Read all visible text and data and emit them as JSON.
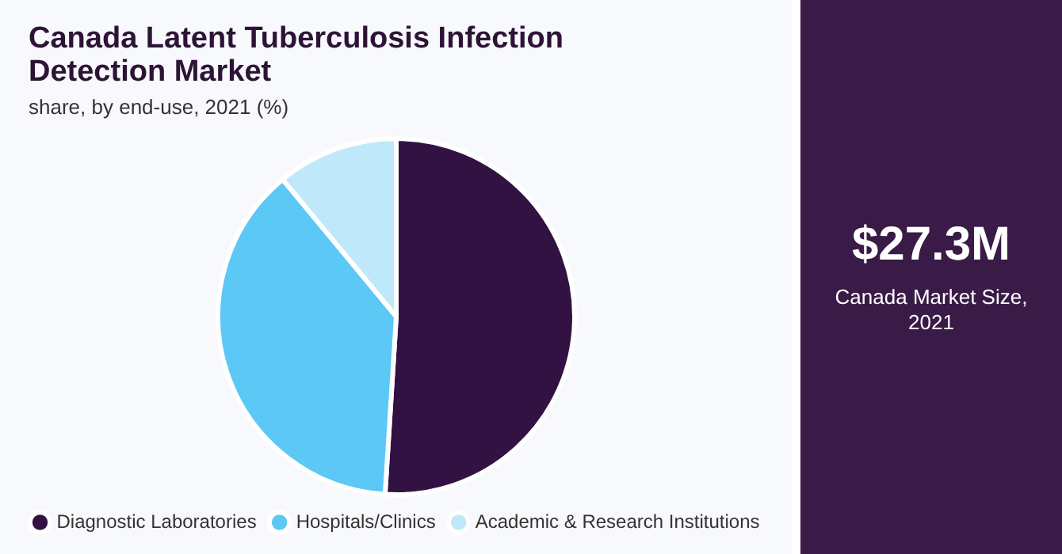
{
  "chart_data": {
    "type": "pie",
    "title": "Canada Latent Tuberculosis Infection Detection Market",
    "subtitle": "share, by end-use, 2021 (%)",
    "categories": [
      "Diagnostic Laboratories",
      "Hospitals/Clinics",
      "Academic & Research Institutions"
    ],
    "values": [
      51,
      38,
      11
    ],
    "colors": [
      "#321242",
      "#5bc8f5",
      "#bfe9fb"
    ],
    "legend": "bottom",
    "annotations": [
      "$27.3M",
      "Canada Market Size, 2021"
    ]
  }
}
